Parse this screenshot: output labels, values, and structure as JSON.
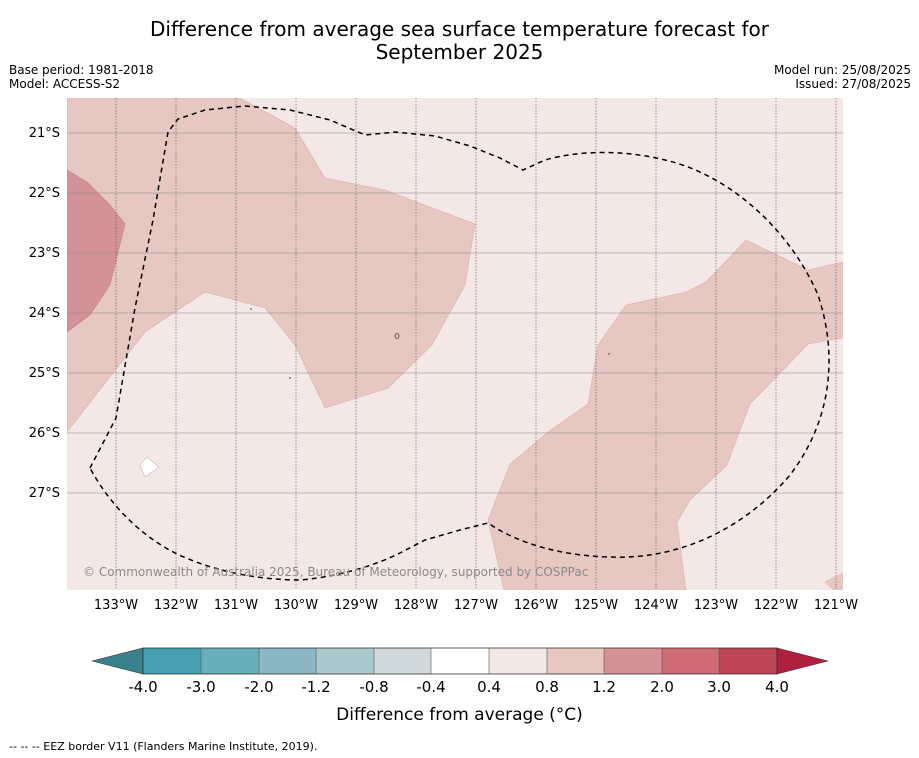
{
  "title": {
    "line1": "Difference from average sea surface temperature forecast for",
    "line2": "September 2025"
  },
  "meta": {
    "base_period": "Base period: 1981-2018",
    "model": "Model: ACCESS-S2",
    "model_run": "Model run: 25/08/2025",
    "issued": "Issued: 27/08/2025"
  },
  "map": {
    "lat_labels": [
      "21°S",
      "22°S",
      "23°S",
      "24°S",
      "25°S",
      "26°S",
      "27°S"
    ],
    "lon_labels": [
      "133°W",
      "132°W",
      "131°W",
      "130°W",
      "129°W",
      "128°W",
      "127°W",
      "126°W",
      "125°W",
      "124°W",
      "123°W",
      "122°W",
      "121°W"
    ],
    "copyright": "© Commonwealth of Australia 2025, Bureau of Meteorology, supported by COSPPac"
  },
  "colorbar": {
    "ticks": [
      "-4.0",
      "-3.0",
      "-2.0",
      "-1.2",
      "-0.8",
      "-0.4",
      "0.4",
      "0.8",
      "1.2",
      "2.0",
      "3.0",
      "4.0"
    ],
    "colors": [
      "#3a818e",
      "#46a0b0",
      "#6aaebb",
      "#8bb8c4",
      "#a9c9cd",
      "#d0d9db",
      "#ffffff",
      "#f4e8e6",
      "#e6c7c2",
      "#d49298",
      "#ce6b74",
      "#be4555",
      "#b01f3d"
    ],
    "label": "Difference from average (°C)"
  },
  "footnote": "-- -- -- EEZ border V11 (Flanders Marine Institute, 2019)."
}
